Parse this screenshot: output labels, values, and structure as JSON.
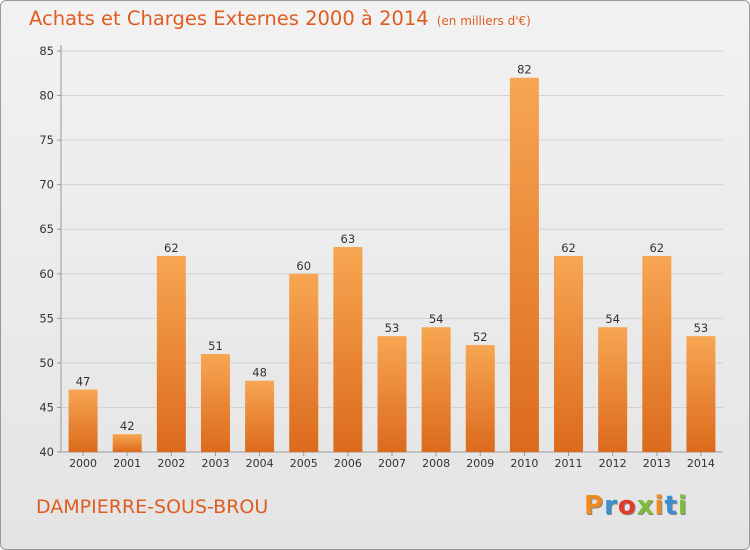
{
  "header": {
    "title": "Achats et Charges Externes 2000 à 2014",
    "subtitle": "(en milliers d'€)"
  },
  "footer": {
    "city": "DAMPIERRE-SOUS-BROU",
    "logo_text": "Proxiti"
  },
  "colors": {
    "bar_light": "#f7a652",
    "bar_dark": "#dc6a1c",
    "title": "#e05d22",
    "grid": "#d2d2d2",
    "axis": "#999999"
  },
  "chart_data": {
    "type": "bar",
    "title": "Achats et Charges Externes 2000 à 2014",
    "subtitle": "(en milliers d'€)",
    "xlabel": "",
    "ylabel": "",
    "categories": [
      "2000",
      "2001",
      "2002",
      "2003",
      "2004",
      "2005",
      "2006",
      "2007",
      "2008",
      "2009",
      "2010",
      "2011",
      "2012",
      "2013",
      "2014"
    ],
    "values": [
      47,
      42,
      62,
      51,
      48,
      60,
      63,
      53,
      54,
      52,
      82,
      62,
      54,
      62,
      53
    ],
    "ylim": [
      40,
      85
    ],
    "yticks": [
      40,
      45,
      50,
      55,
      60,
      65,
      70,
      75,
      80,
      85
    ],
    "grid": true,
    "data_labels": true
  }
}
